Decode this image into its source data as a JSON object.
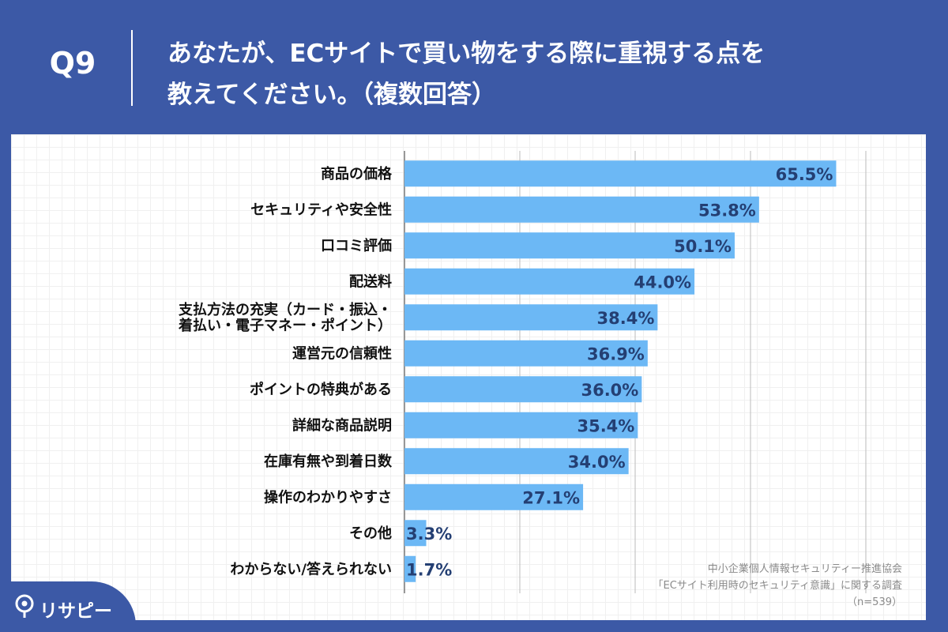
{
  "header": {
    "question_number": "Q9",
    "title_line1": "あなたが、ECサイトで買い物をする際に重視する点を",
    "title_line2": "教えてください。（複数回答）"
  },
  "source": {
    "line1": "中小企業個人情報セキュリティー推進協会",
    "line2": "「ECサイト利用時のセキュリティ意識」に関する調査",
    "line3": "（n=539）"
  },
  "logo": {
    "text": "リサピー"
  },
  "colors": {
    "background": "#3c59a6",
    "bar": "#6cb8f5",
    "value_text": "#243f73"
  },
  "chart_data": {
    "type": "bar",
    "orientation": "horizontal",
    "categories": [
      [
        "商品の価格"
      ],
      [
        "セキュリティや安全性"
      ],
      [
        "口コミ評価"
      ],
      [
        "配送料"
      ],
      [
        "支払方法の充実（カード・振込・",
        "着払い・電子マネー・ポイント）"
      ],
      [
        "運営元の信頼性"
      ],
      [
        "ポイントの特典がある"
      ],
      [
        "詳細な商品説明"
      ],
      [
        "在庫有無や到着日数"
      ],
      [
        "操作のわかりやすさ"
      ],
      [
        "その他"
      ],
      [
        "わからない/答えられない"
      ]
    ],
    "values": [
      65.5,
      53.8,
      50.1,
      44.0,
      38.4,
      36.9,
      36.0,
      35.4,
      34.0,
      27.1,
      3.3,
      1.7
    ],
    "value_labels": [
      "65.5%",
      "53.8%",
      "50.1%",
      "44.0%",
      "38.4%",
      "36.9%",
      "36.0%",
      "35.4%",
      "34.0%",
      "27.1%",
      "3.3%",
      "1.7%"
    ],
    "xlim": [
      0,
      70
    ],
    "gridlines": [
      0,
      17.5,
      35,
      52.5,
      70
    ],
    "grid": true,
    "legend": false
  }
}
